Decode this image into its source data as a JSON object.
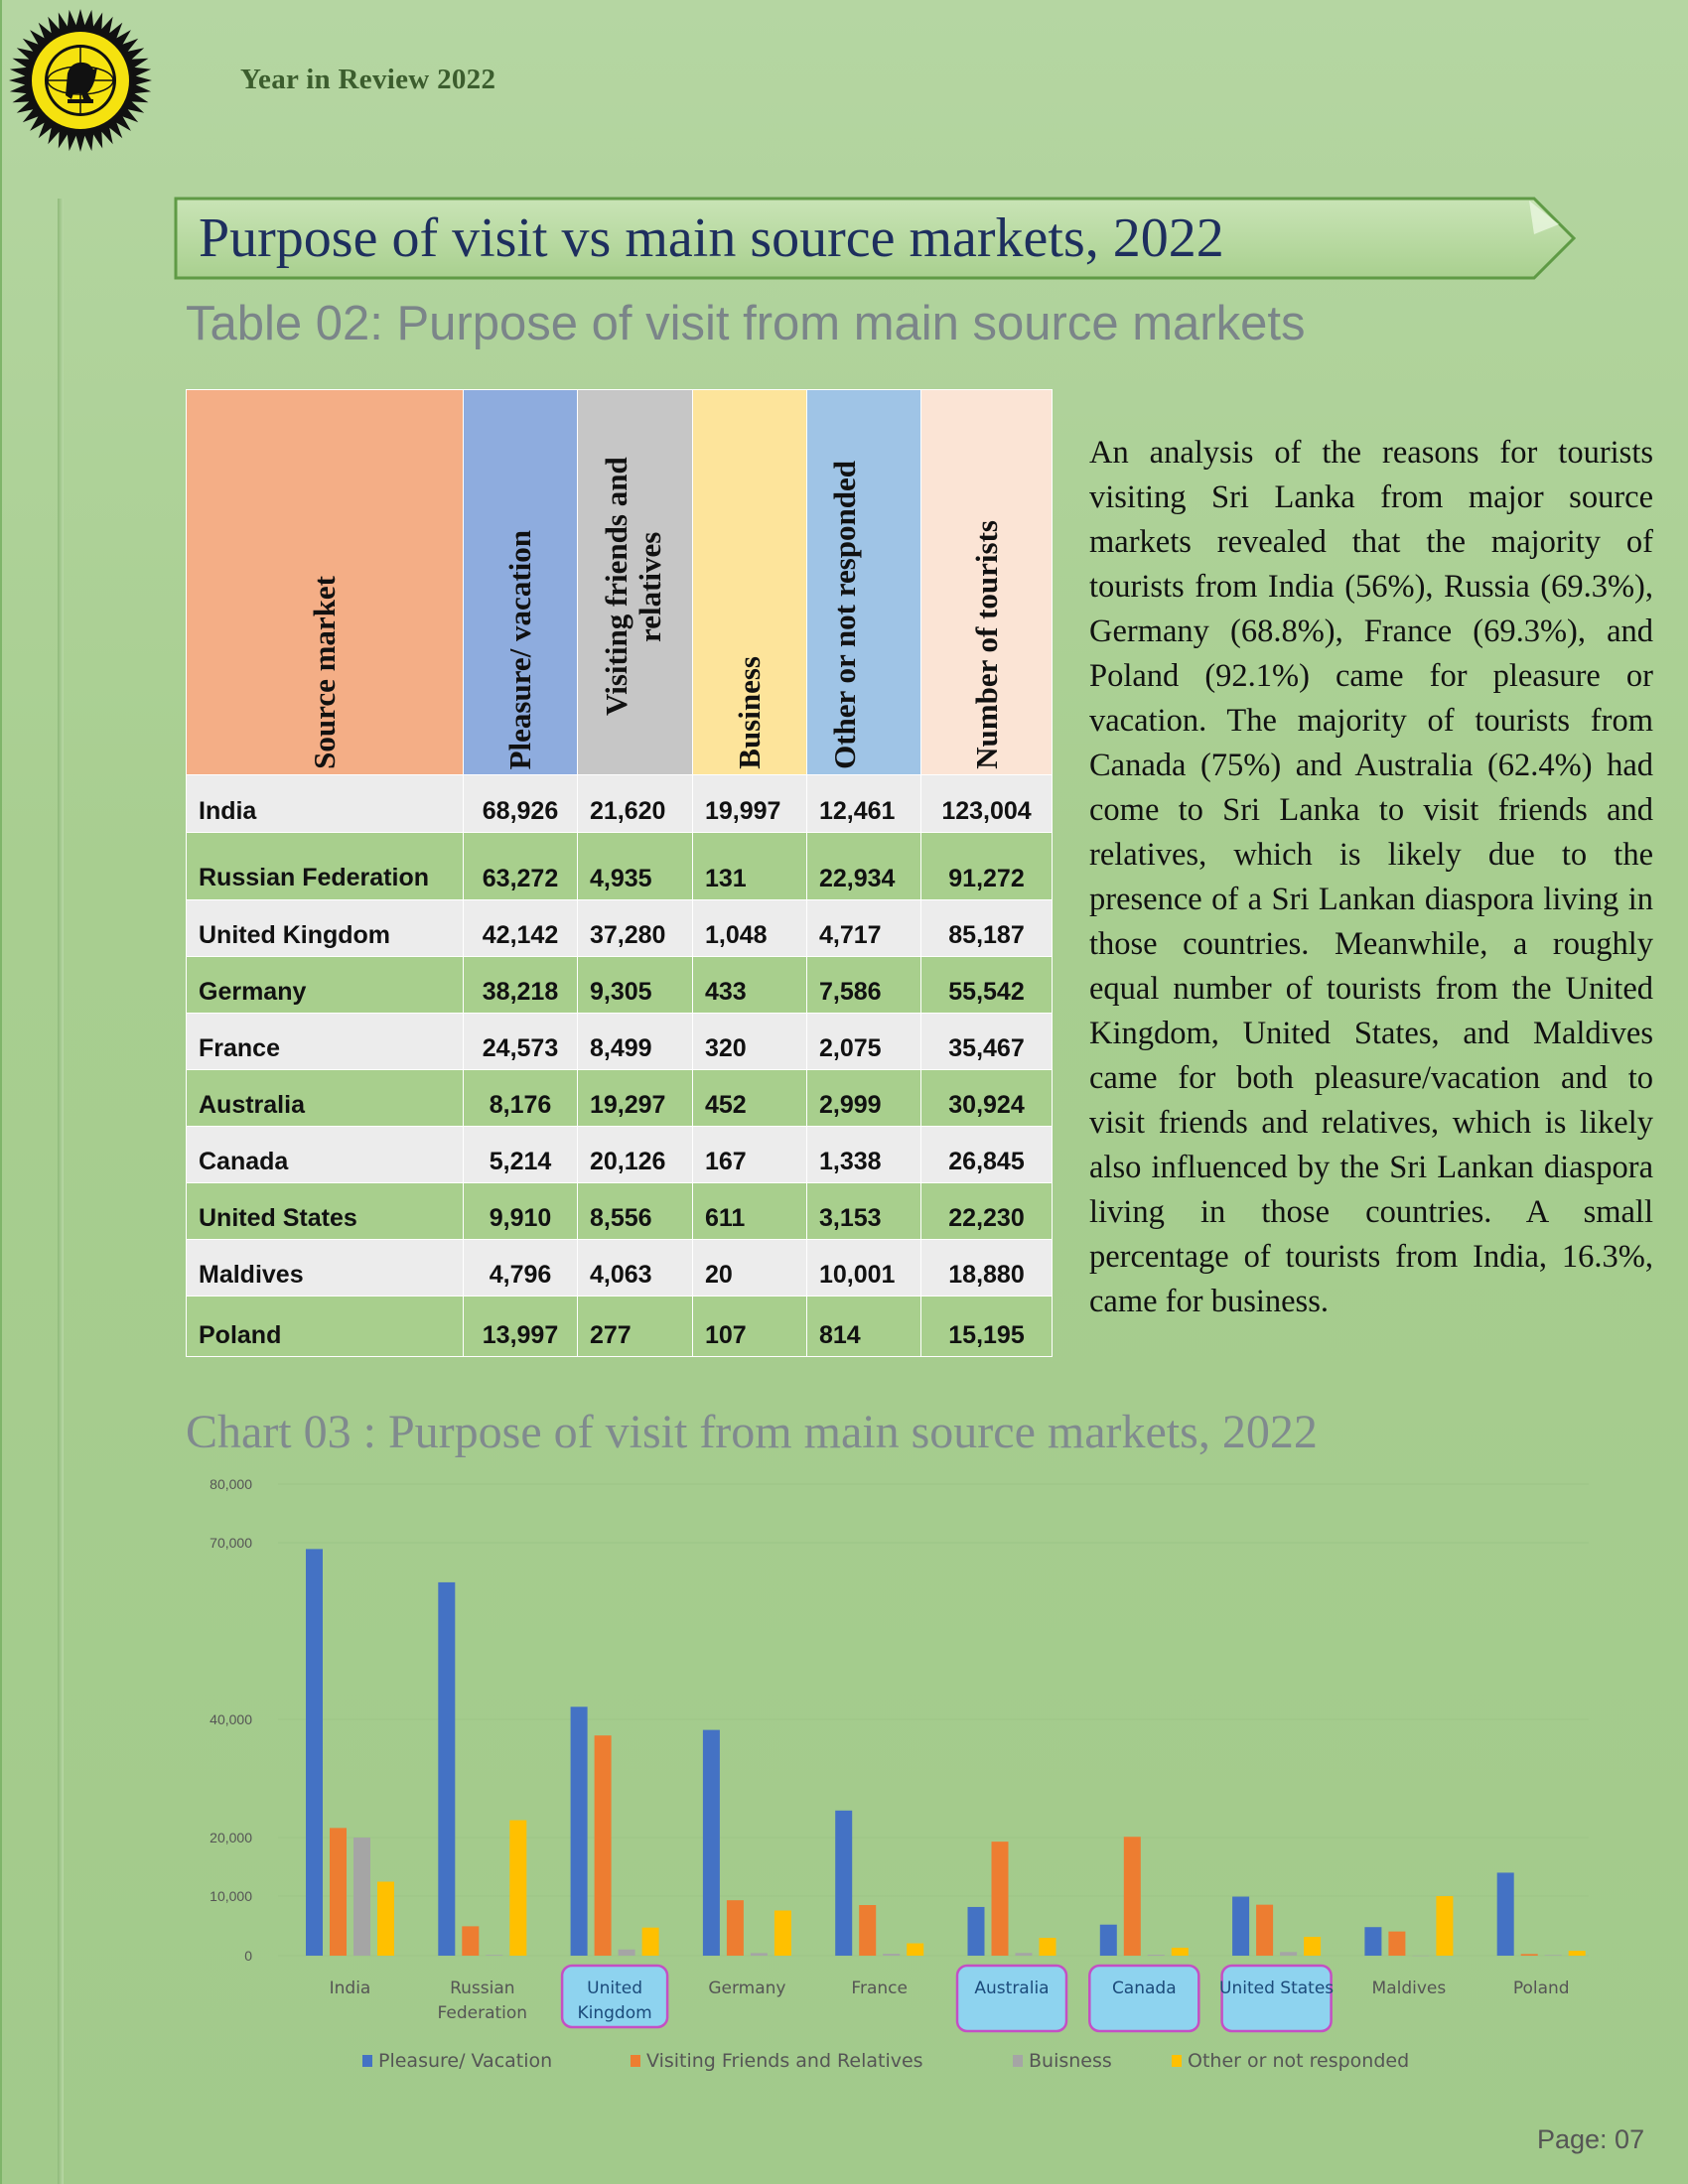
{
  "header": {
    "title": "Year in Review 2022"
  },
  "banner": {
    "title": "Purpose of visit vs main source markets, 2022"
  },
  "table": {
    "title": "Table 02: Purpose of visit from main source markets",
    "headers": [
      "Source market",
      "Pleasure/ vacation",
      "Visiting friends and relatives",
      "Business",
      "Other or not responded",
      "Number of tourists"
    ],
    "header_colors": [
      "#f4ae86",
      "#8eacde",
      "#c6c6c6",
      "#fde49b",
      "#9fc4e6",
      "#fbe4d5"
    ],
    "rows": [
      {
        "market": "India",
        "pleasure": "68,926",
        "vfr": "21,620",
        "business": "19,997",
        "other": "12,461",
        "total": "123,004"
      },
      {
        "market": "Russian Federation",
        "pleasure": "63,272",
        "vfr": "4,935",
        "business": "131",
        "other": "22,934",
        "total": "91,272"
      },
      {
        "market": "United Kingdom",
        "pleasure": "42,142",
        "vfr": "37,280",
        "business": "1,048",
        "other": "4,717",
        "total": "85,187"
      },
      {
        "market": "Germany",
        "pleasure": "38,218",
        "vfr": "9,305",
        "business": "433",
        "other": "7,586",
        "total": "55,542"
      },
      {
        "market": "France",
        "pleasure": "24,573",
        "vfr": "8,499",
        "business": "320",
        "other": "2,075",
        "total": "35,467"
      },
      {
        "market": "Australia",
        "pleasure": "8,176",
        "vfr": "19,297",
        "business": "452",
        "other": "2,999",
        "total": "30,924"
      },
      {
        "market": "Canada",
        "pleasure": "5,214",
        "vfr": "20,126",
        "business": "167",
        "other": "1,338",
        "total": "26,845"
      },
      {
        "market": "United States",
        "pleasure": "9,910",
        "vfr": "8,556",
        "business": "611",
        "other": "3,153",
        "total": "22,230"
      },
      {
        "market": "Maldives",
        "pleasure": "4,796",
        "vfr": "4,063",
        "business": "20",
        "other": "10,001",
        "total": "18,880"
      },
      {
        "market": "Poland",
        "pleasure": "13,997",
        "vfr": "277",
        "business": "107",
        "other": "814",
        "total": "15,195"
      }
    ]
  },
  "paragraph": "An analysis of the reasons for tourists visiting Sri Lanka from major source markets revealed that the majority of tourists from India (56%), Russia (69.3%), Germany (68.8%), France (69.3%), and Poland (92.1%) came for pleasure or vacation. The majority of tourists from Canada (75%) and Australia (62.4%) had come to Sri Lanka to visit friends and relatives, which is likely due to the presence of a Sri Lankan diaspora living in those countries. Meanwhile, a roughly equal number of tourists from the United Kingdom, United States, and Maldives came for both pleasure/vacation and to visit friends and relatives, which is likely also influenced by the Sri Lankan diaspora living in those countries. A small percentage of tourists from India, 16.3%, came for business.",
  "chart_data": {
    "type": "bar",
    "title": "Chart 03 : Purpose of visit from main source markets, 2022",
    "categories": [
      "India",
      "Russian Federation",
      "United Kingdom",
      "Germany",
      "France",
      "Australia",
      "Canada",
      "United States",
      "Maldives",
      "Poland"
    ],
    "highlighted_categories": [
      "United Kingdom",
      "Australia",
      "Canada",
      "United States"
    ],
    "yticks": [
      "0",
      "10,000",
      "20,000",
      "40,000",
      "70,000",
      "80,000"
    ],
    "ytick_values": [
      0,
      10000,
      20000,
      40000,
      70000,
      80000
    ],
    "ylim": [
      0,
      80000
    ],
    "legend_position": "bottom",
    "series": [
      {
        "name": "Pleasure/ Vacation",
        "color": "#4472c4",
        "values": [
          68926,
          63272,
          42142,
          38218,
          24573,
          8176,
          5214,
          9910,
          4796,
          13997
        ]
      },
      {
        "name": "Visiting Friends and Relatives",
        "color": "#ed7d31",
        "values": [
          21620,
          4935,
          37280,
          9305,
          8499,
          19297,
          20126,
          8556,
          4063,
          277
        ]
      },
      {
        "name": "Buisness",
        "color": "#a5a5a5",
        "values": [
          19997,
          131,
          1048,
          433,
          320,
          452,
          167,
          611,
          20,
          107
        ]
      },
      {
        "name": "Other or not responded",
        "color": "#ffc000",
        "values": [
          12461,
          22934,
          4717,
          7586,
          2075,
          2999,
          1338,
          3153,
          10001,
          814
        ]
      }
    ]
  },
  "footer": {
    "page": "Page: 07"
  }
}
